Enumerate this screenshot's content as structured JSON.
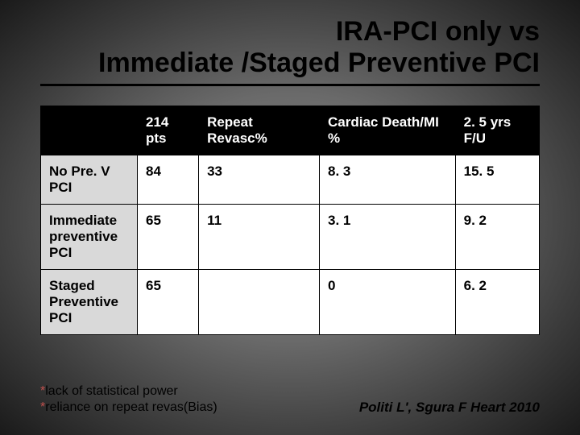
{
  "title": {
    "line1": "IRA-PCI only vs",
    "line2": "Immediate /Staged Preventive PCI"
  },
  "table": {
    "headers": [
      "",
      "214 pts",
      "Repeat Revasc%",
      "Cardiac Death/MI %",
      "2. 5 yrs F/U"
    ],
    "rows": [
      {
        "label": "No Pre. V PCI",
        "cells": [
          "84",
          "33",
          "8. 3",
          "15. 5"
        ]
      },
      {
        "label": "Immediate preventive PCI",
        "cells": [
          "65",
          "11",
          "3. 1",
          "9. 2"
        ]
      },
      {
        "label": "Staged Preventive PCI",
        "cells": [
          "65",
          "",
          "0",
          "6. 2"
        ]
      }
    ]
  },
  "footnotes": {
    "line1": "lack of statistical power",
    "line2": "reliance on repeat revas(Bias)"
  },
  "citation": "Politi L', Sgura F  Heart 2010",
  "colors": {
    "header_bg": "#000000",
    "header_fg": "#ffffff",
    "rowlabel_bg": "#d9d9d9",
    "cell_bg": "#ffffff",
    "star_color": "#c0504d"
  }
}
